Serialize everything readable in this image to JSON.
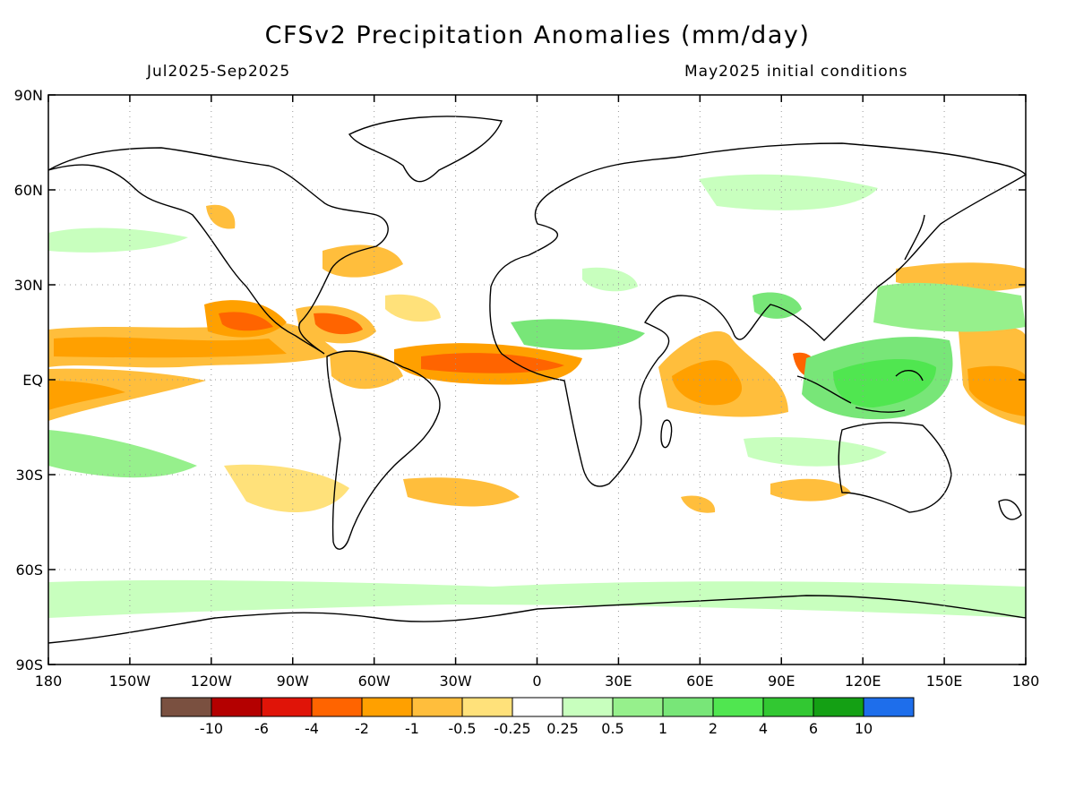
{
  "title": "CFSv2 Precipitation Anomalies (mm/day)",
  "period": "Jul2025-Sep2025",
  "initial_conditions": "May2025 initial conditions",
  "lat_labels": [
    "90N",
    "60N",
    "30N",
    "EQ",
    "30S",
    "60S",
    "90S"
  ],
  "lon_labels": [
    "180",
    "150W",
    "120W",
    "90W",
    "60W",
    "30W",
    "0",
    "30E",
    "60E",
    "90E",
    "120E",
    "150E",
    "180"
  ],
  "colorbar": {
    "colors": [
      "#7a5040",
      "#b40000",
      "#e01408",
      "#ff6400",
      "#ffa000",
      "#ffbe3c",
      "#ffe17a",
      "#ffffff",
      "#c8ffbe",
      "#96f08c",
      "#78e678",
      "#50e650",
      "#32c832",
      "#14a014",
      "#1e6eeb"
    ],
    "labels": [
      "-10",
      "-6",
      "-4",
      "-2",
      "-1",
      "-0.5",
      "-0.25",
      "0.25",
      "0.5",
      "1",
      "2",
      "4",
      "6",
      "10"
    ]
  }
}
